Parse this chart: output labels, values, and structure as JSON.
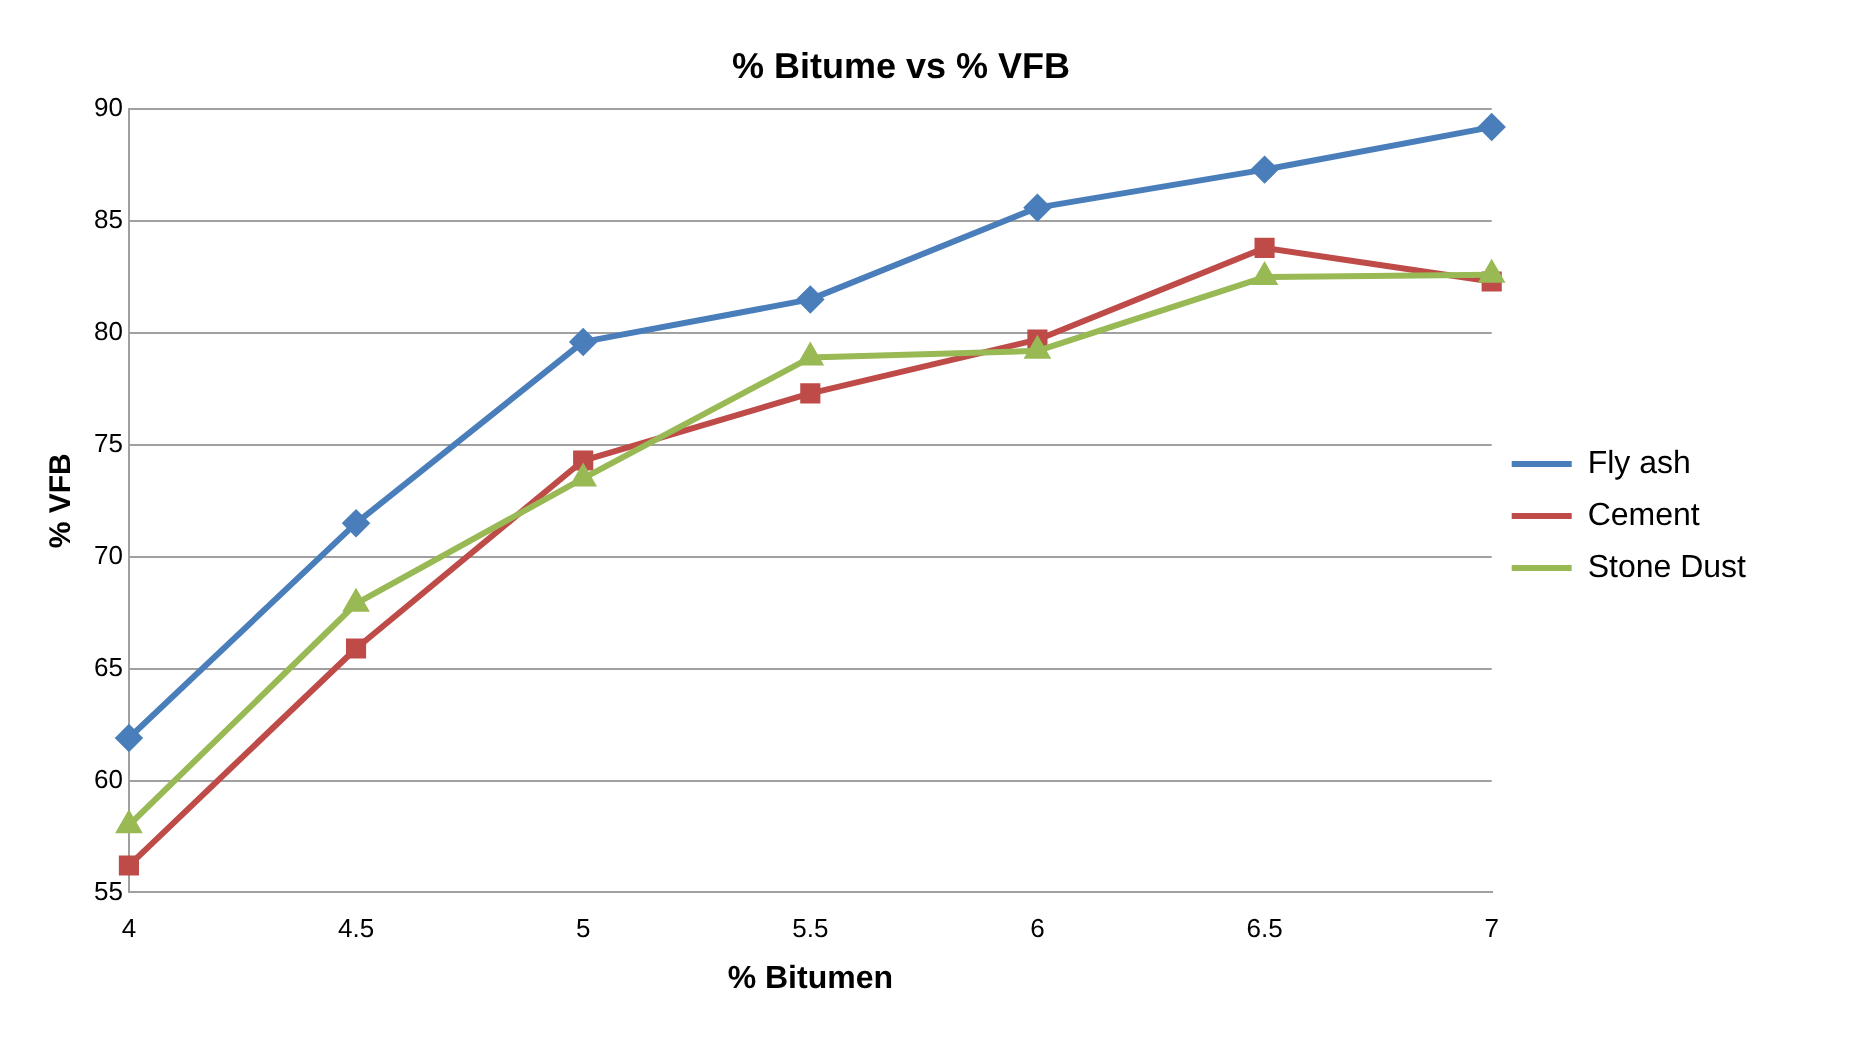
{
  "chart_data": {
    "type": "line",
    "title": "% Bitume vs % VFB",
    "xlabel": "% Bitumen",
    "ylabel": "% VFB",
    "x": [
      4,
      4.5,
      5,
      5.5,
      6,
      6.5,
      7
    ],
    "series": [
      {
        "name": "Fly ash",
        "color": "#4a7ebb",
        "marker": "diamond",
        "values": [
          61.9,
          71.5,
          79.6,
          81.5,
          85.6,
          87.3,
          89.2
        ]
      },
      {
        "name": "Cement",
        "color": "#be4b48",
        "marker": "square",
        "values": [
          56.2,
          65.9,
          74.3,
          77.3,
          79.7,
          83.8,
          82.3
        ]
      },
      {
        "name": "Stone Dust",
        "color": "#98b954",
        "marker": "triangle",
        "values": [
          58.0,
          67.9,
          73.5,
          78.9,
          79.2,
          82.5,
          82.6
        ]
      }
    ],
    "xlim": [
      4,
      7
    ],
    "xticks": [
      4,
      4.5,
      5,
      5.5,
      6,
      6.5,
      7
    ],
    "ylim": [
      55,
      90
    ],
    "yticks": [
      55,
      60,
      65,
      70,
      75,
      80,
      85,
      90
    ],
    "grid": "y",
    "legend": "right",
    "line_style": "solid"
  }
}
